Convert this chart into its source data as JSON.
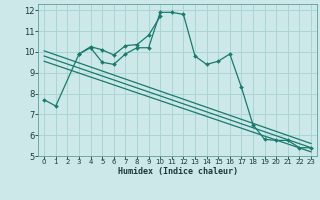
{
  "xlabel": "Humidex (Indice chaleur)",
  "bg_color": "#cce8e8",
  "grid_color": "#aad4d4",
  "line_color": "#1a7a6e",
  "xlim": [
    -0.5,
    23.5
  ],
  "ylim": [
    5,
    12.3
  ],
  "xticks": [
    0,
    1,
    2,
    3,
    4,
    5,
    6,
    7,
    8,
    9,
    10,
    11,
    12,
    13,
    14,
    15,
    16,
    17,
    18,
    19,
    20,
    21,
    22,
    23
  ],
  "yticks": [
    5,
    6,
    7,
    8,
    9,
    10,
    11,
    12
  ],
  "curve1_x": [
    0,
    1,
    3,
    4,
    5,
    6,
    7,
    8,
    9,
    10,
    11,
    12,
    13,
    14,
    15,
    16,
    17,
    18,
    19,
    20,
    21,
    22,
    23
  ],
  "curve1_y": [
    7.7,
    7.4,
    9.9,
    10.2,
    9.5,
    9.4,
    9.9,
    10.2,
    10.2,
    11.9,
    11.9,
    11.8,
    9.8,
    9.4,
    9.55,
    9.9,
    8.3,
    6.5,
    5.8,
    5.75,
    5.75,
    5.4,
    5.4
  ],
  "curve2_x": [
    3,
    4,
    5,
    6,
    7,
    8,
    9,
    10
  ],
  "curve2_y": [
    9.9,
    10.25,
    10.1,
    9.85,
    10.3,
    10.35,
    10.8,
    11.7
  ],
  "line2_x": [
    0,
    23
  ],
  "line2_y": [
    10.05,
    5.6
  ],
  "line3_x": [
    0,
    23
  ],
  "line3_y": [
    9.8,
    5.4
  ],
  "line4_x": [
    0,
    23
  ],
  "line4_y": [
    9.55,
    5.2
  ]
}
